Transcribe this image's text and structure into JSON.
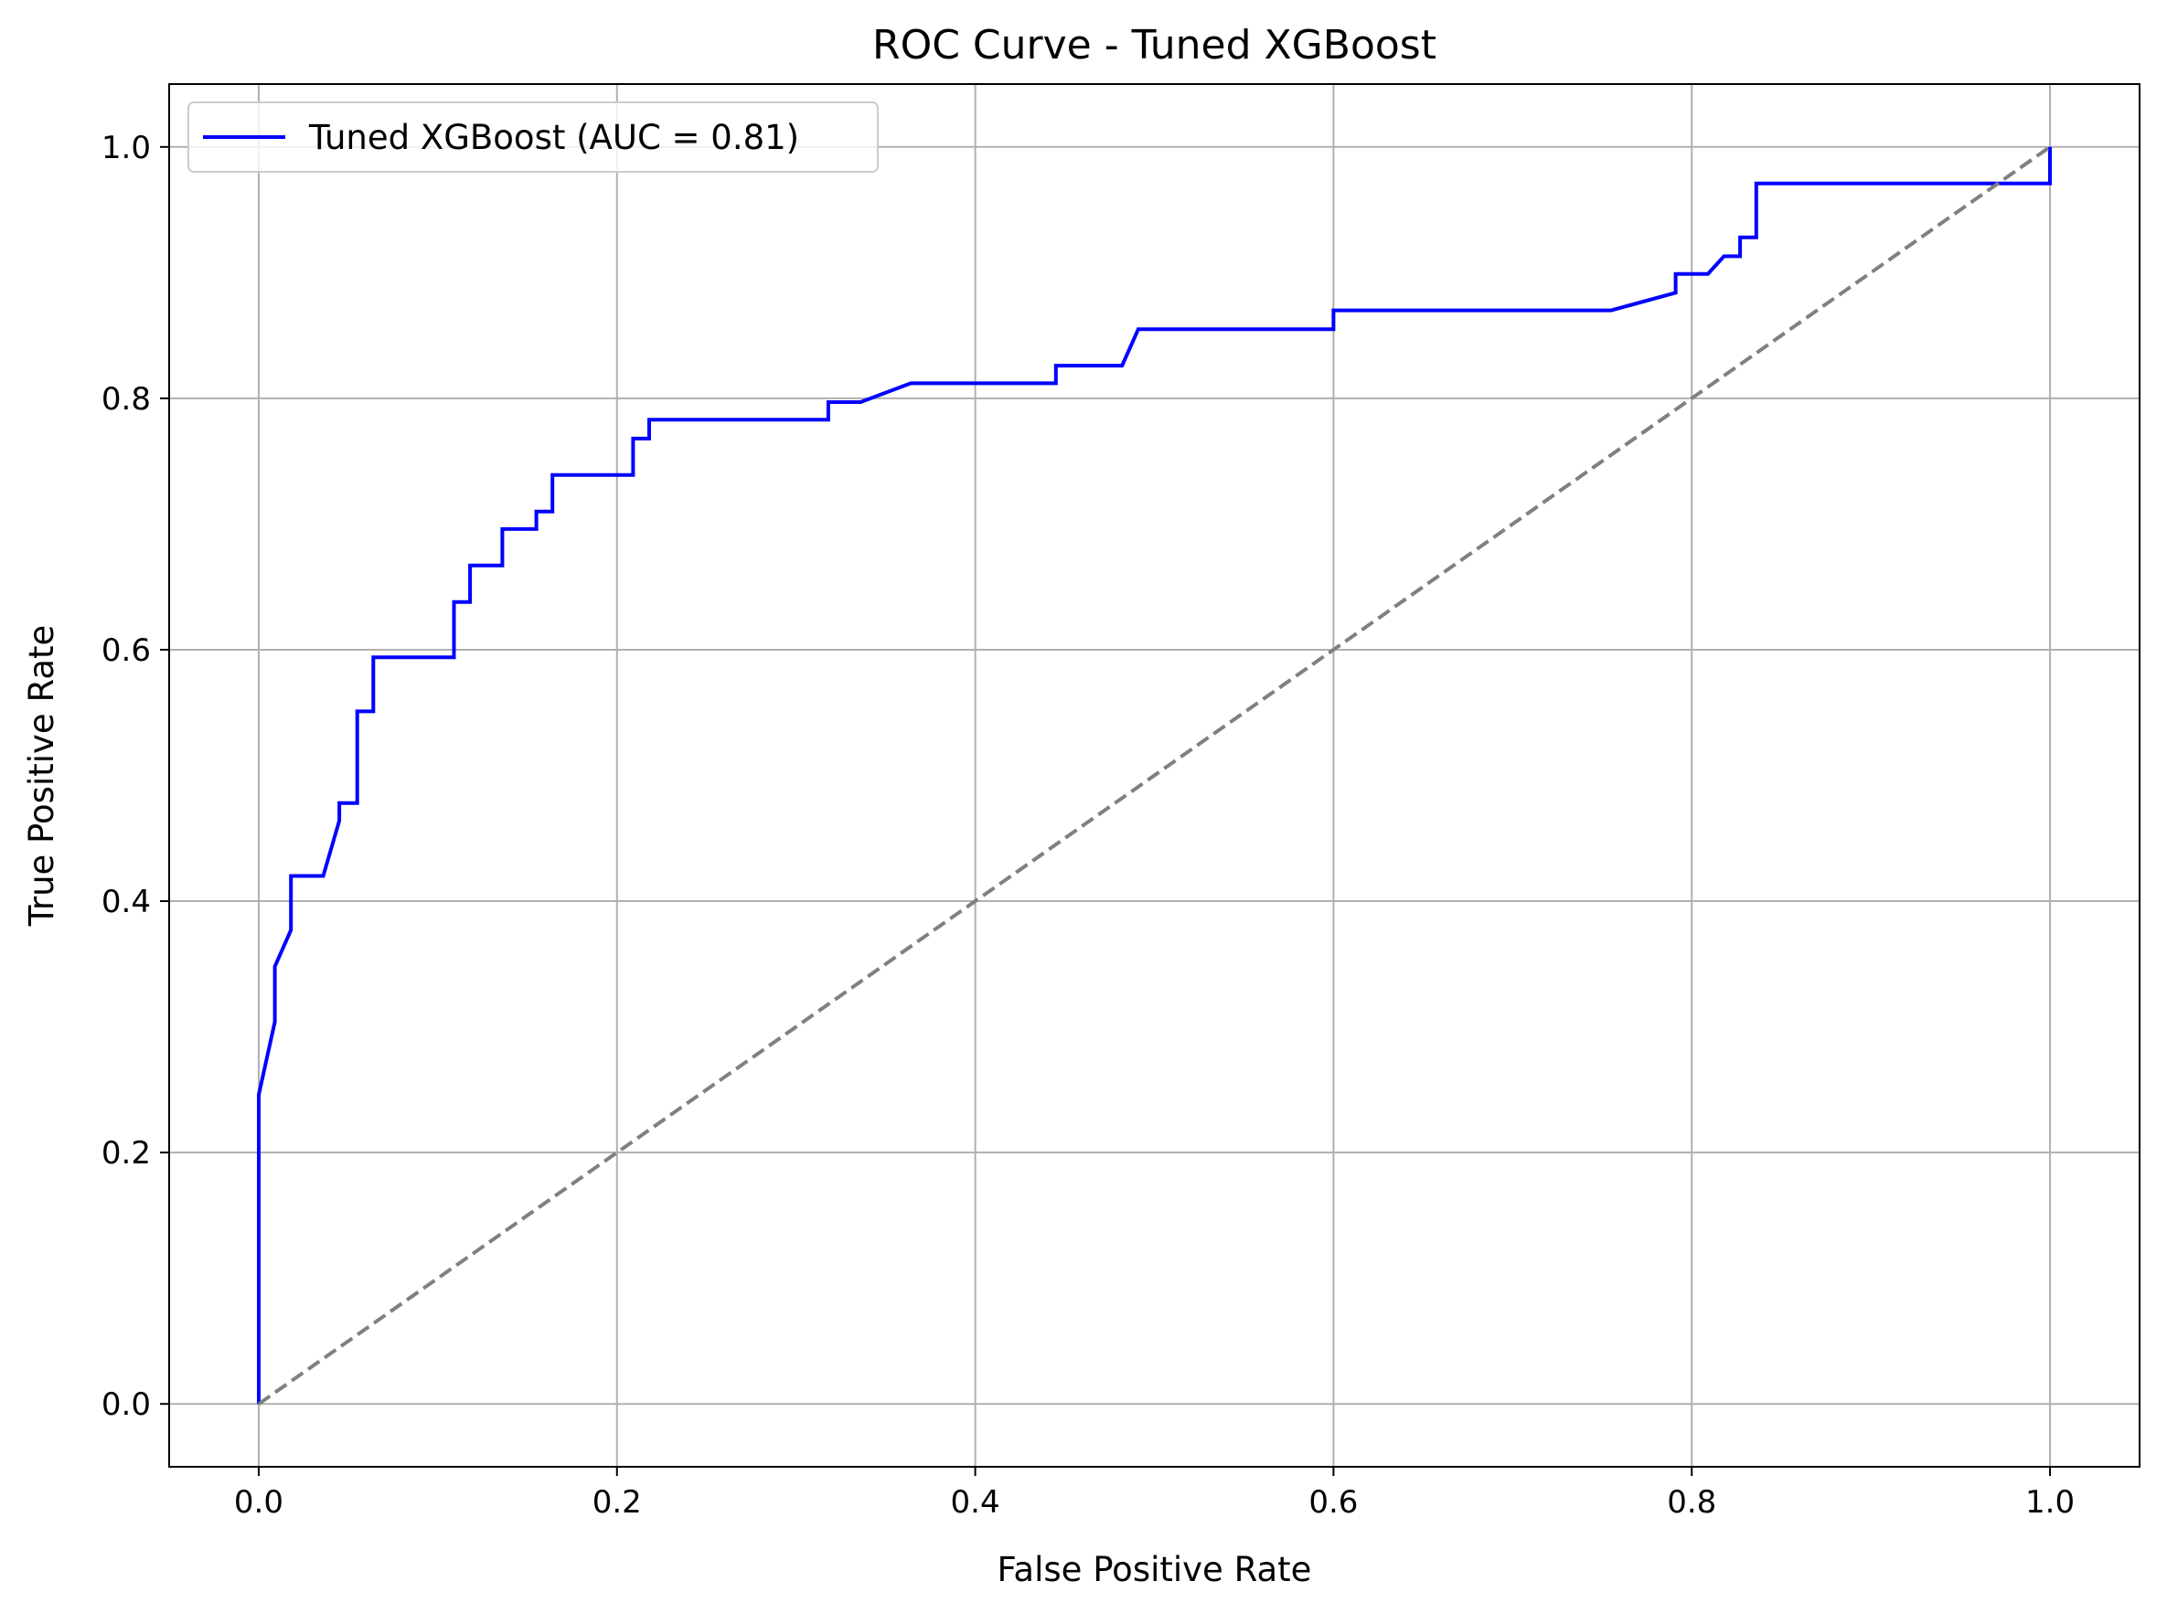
{
  "chart_data": {
    "type": "line",
    "title": "ROC Curve - Tuned XGBoost",
    "xlabel": "False Positive Rate",
    "ylabel": "True Positive Rate",
    "xlim": [
      -0.05,
      1.05
    ],
    "ylim": [
      -0.05,
      1.05
    ],
    "xticks": [
      0.0,
      0.2,
      0.4,
      0.6,
      0.8,
      1.0
    ],
    "yticks": [
      0.0,
      0.2,
      0.4,
      0.6,
      0.8,
      1.0
    ],
    "xtick_labels": [
      "0.0",
      "0.2",
      "0.4",
      "0.6",
      "0.8",
      "1.0"
    ],
    "ytick_labels": [
      "0.0",
      "0.2",
      "0.4",
      "0.6",
      "0.8",
      "1.0"
    ],
    "grid": true,
    "legend_position": "top-left",
    "series": [
      {
        "name": "Tuned XGBoost (AUC = 0.81)",
        "color": "#0000ff",
        "style": "solid",
        "points": [
          [
            0.0,
            0.0
          ],
          [
            0.0,
            0.246
          ],
          [
            0.009,
            0.304
          ],
          [
            0.009,
            0.348
          ],
          [
            0.018,
            0.377
          ],
          [
            0.018,
            0.42
          ],
          [
            0.036,
            0.42
          ],
          [
            0.045,
            0.464
          ],
          [
            0.045,
            0.478
          ],
          [
            0.055,
            0.478
          ],
          [
            0.055,
            0.551
          ],
          [
            0.064,
            0.551
          ],
          [
            0.064,
            0.594
          ],
          [
            0.109,
            0.594
          ],
          [
            0.109,
            0.638
          ],
          [
            0.118,
            0.638
          ],
          [
            0.118,
            0.667
          ],
          [
            0.136,
            0.667
          ],
          [
            0.136,
            0.696
          ],
          [
            0.155,
            0.696
          ],
          [
            0.155,
            0.71
          ],
          [
            0.164,
            0.71
          ],
          [
            0.164,
            0.739
          ],
          [
            0.209,
            0.739
          ],
          [
            0.209,
            0.768
          ],
          [
            0.218,
            0.768
          ],
          [
            0.218,
            0.783
          ],
          [
            0.318,
            0.783
          ],
          [
            0.318,
            0.797
          ],
          [
            0.336,
            0.797
          ],
          [
            0.364,
            0.812
          ],
          [
            0.445,
            0.812
          ],
          [
            0.445,
            0.826
          ],
          [
            0.482,
            0.826
          ],
          [
            0.491,
            0.855
          ],
          [
            0.6,
            0.855
          ],
          [
            0.6,
            0.87
          ],
          [
            0.755,
            0.87
          ],
          [
            0.791,
            0.884
          ],
          [
            0.791,
            0.899
          ],
          [
            0.809,
            0.899
          ],
          [
            0.818,
            0.913
          ],
          [
            0.827,
            0.913
          ],
          [
            0.827,
            0.928
          ],
          [
            0.836,
            0.928
          ],
          [
            0.836,
            0.971
          ],
          [
            1.0,
            0.971
          ],
          [
            1.0,
            1.0
          ]
        ]
      },
      {
        "name": "",
        "color": "#808080",
        "style": "dashed",
        "points": [
          [
            0.0,
            0.0
          ],
          [
            1.0,
            1.0
          ]
        ]
      }
    ]
  }
}
